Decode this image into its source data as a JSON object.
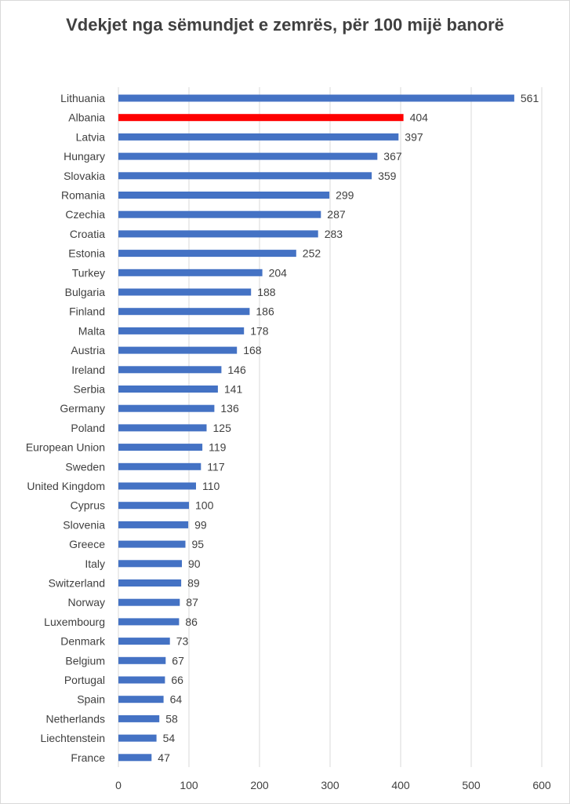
{
  "chart_data": {
    "type": "bar",
    "orientation": "horizontal",
    "title": "Vdekjet nga sëmundjet e zemrës, për 100 mijë banorë",
    "xlim": [
      0,
      600
    ],
    "xticks": [
      0,
      100,
      200,
      300,
      400,
      500,
      600
    ],
    "grid": true,
    "bar_color": "#4472C4",
    "highlight_color": "#FF0000",
    "highlight_category": "Albania",
    "categories": [
      "Lithuania",
      "Albania",
      "Latvia",
      "Hungary",
      "Slovakia",
      "Romania",
      "Czechia",
      "Croatia",
      "Estonia",
      "Turkey",
      "Bulgaria",
      "Finland",
      "Malta",
      "Austria",
      "Ireland",
      "Serbia",
      "Germany",
      "Poland",
      "European Union",
      "Sweden",
      "United Kingdom",
      "Cyprus",
      "Slovenia",
      "Greece",
      "Italy",
      "Switzerland",
      "Norway",
      "Luxembourg",
      "Denmark",
      "Belgium",
      "Portugal",
      "Spain",
      "Netherlands",
      "Liechtenstein",
      "France"
    ],
    "values": [
      561,
      404,
      397,
      367,
      359,
      299,
      287,
      283,
      252,
      204,
      188,
      186,
      178,
      168,
      146,
      141,
      136,
      125,
      119,
      117,
      110,
      100,
      99,
      95,
      90,
      89,
      87,
      86,
      73,
      67,
      66,
      64,
      58,
      54,
      47
    ]
  }
}
